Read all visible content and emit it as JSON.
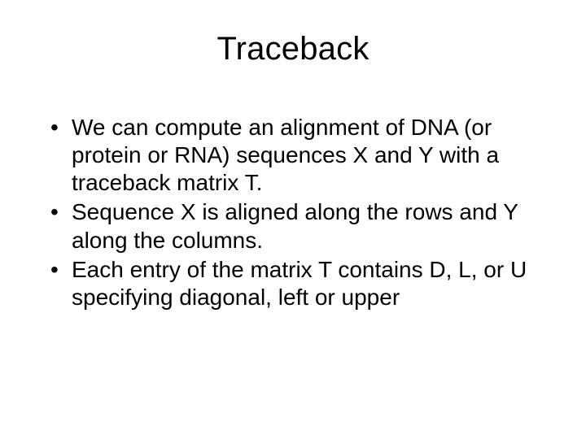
{
  "slide": {
    "title": "Traceback",
    "bullets": [
      "We can compute an alignment of DNA (or protein or RNA) sequences X and Y with a traceback matrix T.",
      "Sequence X is aligned along the rows and Y along the columns.",
      "Each entry of the matrix T contains D, L, or U specifying diagonal, left or upper"
    ],
    "background_color": "#ffffff",
    "text_color": "#000000",
    "title_fontsize": 40,
    "body_fontsize": 28,
    "font_family": "Arial"
  }
}
